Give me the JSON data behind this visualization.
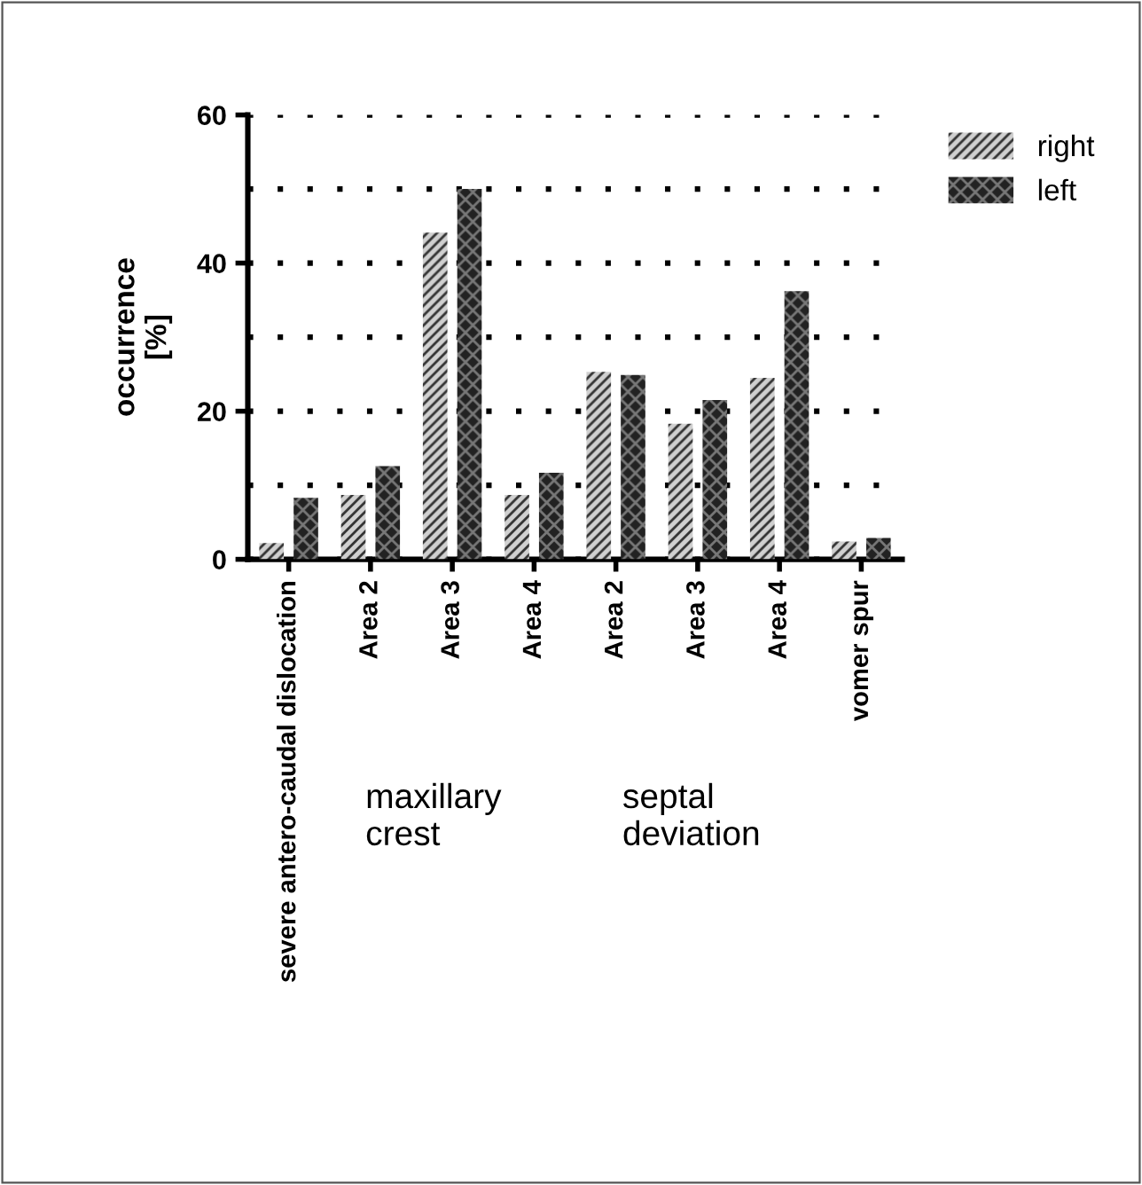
{
  "chart_data": {
    "type": "bar",
    "ylabel": "occurrence\n[%]",
    "categories": [
      "severe antero-caudal dislocation",
      "Area 2",
      "Area 3",
      "Area 4",
      "Area 2",
      "Area 3",
      "Area 4",
      "vomer spur"
    ],
    "series": [
      {
        "name": "right",
        "color": "#d0d0d0",
        "values": [
          2.2,
          8.7,
          44.1,
          8.7,
          25.3,
          18.3,
          24.5,
          2.4
        ]
      },
      {
        "name": "left",
        "color": "#222222",
        "values": [
          8.3,
          12.6,
          50,
          11.7,
          24.9,
          21.5,
          36.2,
          2.9
        ]
      }
    ],
    "ylim": [
      0,
      60
    ],
    "yticks": [
      0,
      {
        "value": 10,
        "label": null
      },
      20,
      {
        "value": 30,
        "label": null
      },
      40,
      {
        "value": 50,
        "label": null
      },
      60
    ],
    "grid": "y",
    "legend": "top right",
    "annotations": [
      "maxillary crest",
      "septal deviation"
    ]
  }
}
